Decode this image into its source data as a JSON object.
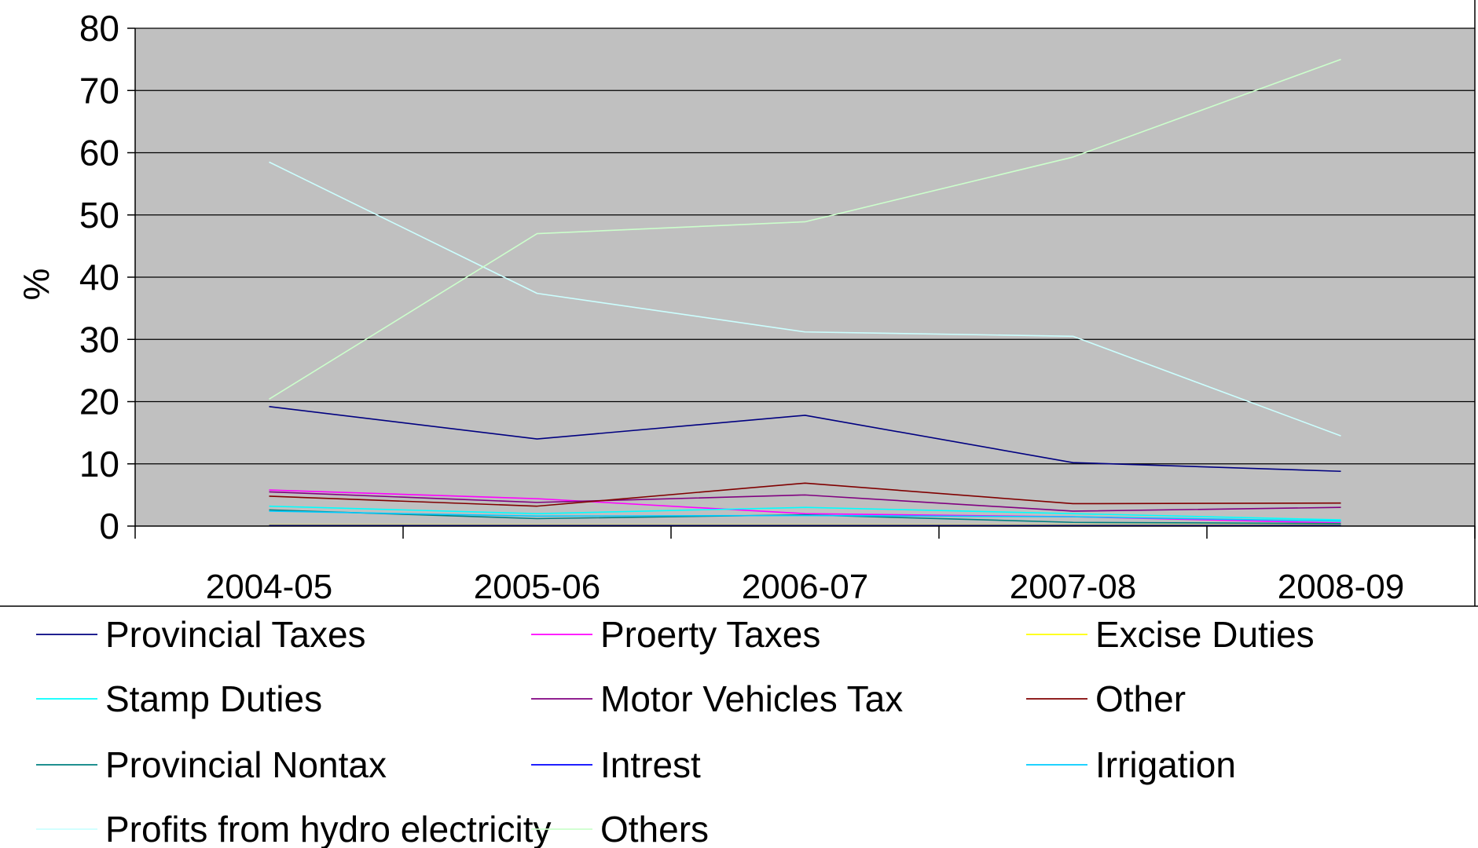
{
  "chart_data": {
    "type": "line",
    "title": "",
    "xlabel": "",
    "ylabel": "%",
    "ylim": [
      0,
      80
    ],
    "yticks": [
      "0",
      "10",
      "20",
      "30",
      "40",
      "50",
      "60",
      "70",
      "80"
    ],
    "categories": [
      "2004-05",
      "2005-06",
      "2006-07",
      "2007-08",
      "2008-09"
    ],
    "grid": "horizontal",
    "legend_position": "bottom",
    "plot_background": "#c0c0c0",
    "series": [
      {
        "name": "Provincial Taxes",
        "color": "#000080",
        "values": [
          19.2,
          14.0,
          17.8,
          10.2,
          8.8
        ]
      },
      {
        "name": "Proerty Taxes",
        "color": "#ff00ff",
        "values": [
          5.8,
          4.4,
          2.0,
          1.5,
          0.5
        ]
      },
      {
        "name": "Excise Duties",
        "color": "#ffff00",
        "values": [
          0.2,
          0.2,
          0.2,
          0.2,
          0.2
        ]
      },
      {
        "name": "Stamp Duties",
        "color": "#00ffff",
        "values": [
          3.2,
          2.0,
          3.0,
          2.0,
          1.0
        ]
      },
      {
        "name": "Motor Vehicles Tax",
        "color": "#800080",
        "values": [
          5.5,
          3.8,
          5.0,
          2.4,
          3.0
        ]
      },
      {
        "name": "Other",
        "color": "#800000",
        "values": [
          4.8,
          3.2,
          6.9,
          3.6,
          3.7
        ]
      },
      {
        "name": "Provincial Nontax",
        "color": "#008080",
        "values": [
          2.6,
          1.2,
          1.8,
          0.6,
          0.4
        ]
      },
      {
        "name": "Intrest",
        "color": "#0000ff",
        "values": [
          0.1,
          0.1,
          0.1,
          0.1,
          0.1
        ]
      },
      {
        "name": "Irrigation",
        "color": "#00ccff",
        "values": [
          2.4,
          1.6,
          1.7,
          1.5,
          0.8
        ]
      },
      {
        "name": "Profits from hydro electricity",
        "color": "#ccffff",
        "values": [
          58.5,
          37.4,
          31.2,
          30.5,
          14.5
        ]
      },
      {
        "name": "Others",
        "color": "#ccffcc",
        "values": [
          20.4,
          47.0,
          48.9,
          59.3,
          75.0
        ]
      }
    ]
  }
}
